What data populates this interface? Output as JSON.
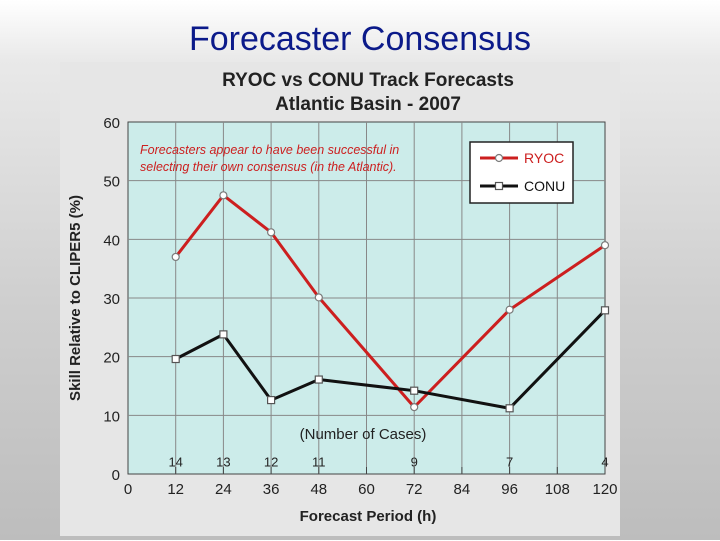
{
  "slide": {
    "title": "Forecaster Consensus"
  },
  "chart_data": {
    "type": "line",
    "title": [
      "RYOC vs CONU Track Forecasts",
      "Atlantic Basin - 2007"
    ],
    "xlabel": "Forecast Period (h)",
    "ylabel": "Skill Relative to CLIPER5 (%)",
    "xlim": [
      0,
      120
    ],
    "ylim": [
      0,
      60
    ],
    "xticks": [
      0,
      12,
      24,
      36,
      48,
      60,
      72,
      84,
      96,
      108,
      120
    ],
    "yticks": [
      0,
      10,
      20,
      30,
      40,
      50,
      60
    ],
    "grid": true,
    "x": [
      12,
      24,
      36,
      48,
      72,
      96,
      120
    ],
    "series": [
      {
        "name": "RYOC",
        "color": "#cc1f1f",
        "marker": "circle",
        "values": [
          37,
          47.5,
          41.2,
          30.1,
          11.4,
          28,
          39
        ]
      },
      {
        "name": "CONU",
        "color": "#111111",
        "marker": "square",
        "values": [
          19.6,
          23.8,
          12.6,
          16.1,
          14.2,
          11.2,
          27.9
        ]
      }
    ],
    "case_counts": {
      "label": "(Number of Cases)",
      "x": [
        12,
        24,
        36,
        48,
        72,
        96,
        120
      ],
      "values": [
        "14",
        "13",
        "12",
        "11",
        "9",
        "7",
        "4"
      ]
    },
    "annotation": "Forecasters appear to have been successful in selecting their own consensus (in the Atlantic).",
    "legend_position": "top-right"
  }
}
